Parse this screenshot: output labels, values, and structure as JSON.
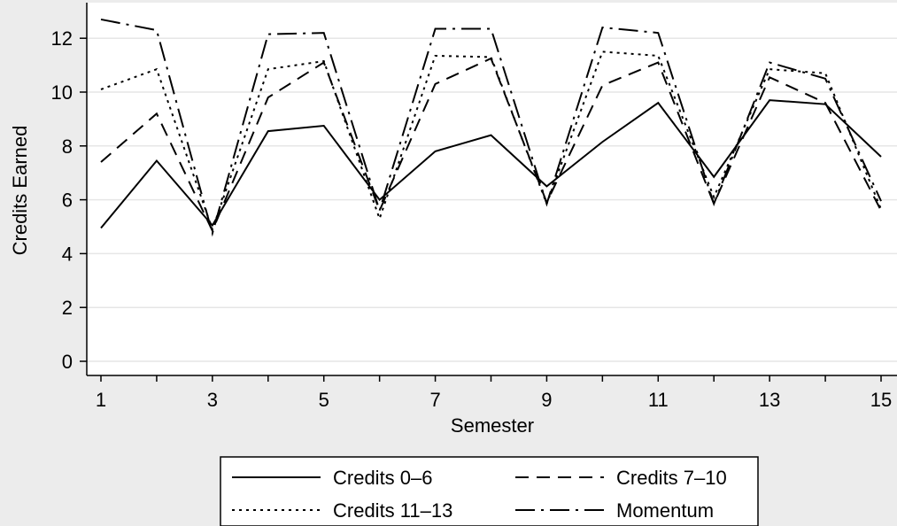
{
  "chart_data": {
    "type": "line",
    "xlabel": "Semester",
    "ylabel": "Credits Earned",
    "x": [
      1,
      2,
      3,
      4,
      5,
      6,
      7,
      8,
      9,
      10,
      11,
      12,
      13,
      14,
      15
    ],
    "x_ticks": [
      "1",
      "3",
      "5",
      "7",
      "9",
      "11",
      "13",
      "15"
    ],
    "y_ticks": [
      "0",
      "2",
      "4",
      "6",
      "8",
      "10",
      "12"
    ],
    "xlim": [
      1,
      15
    ],
    "ylim": [
      0,
      13
    ],
    "grid": true,
    "legend_position": "bottom",
    "series": [
      {
        "name": "Credits 0–6",
        "style": "solid",
        "values": [
          4.95,
          7.45,
          5.05,
          8.55,
          8.75,
          6.0,
          7.8,
          8.4,
          6.5,
          8.15,
          9.6,
          6.85,
          9.7,
          9.55,
          7.6
        ]
      },
      {
        "name": "Credits 7–10",
        "style": "dash",
        "values": [
          7.4,
          9.2,
          4.85,
          9.8,
          11.1,
          5.6,
          10.3,
          11.25,
          5.9,
          10.25,
          11.1,
          5.85,
          10.55,
          9.6,
          5.6
        ]
      },
      {
        "name": "Credits 11–13",
        "style": "dot",
        "values": [
          10.1,
          10.85,
          4.9,
          10.85,
          11.15,
          5.3,
          11.35,
          11.3,
          5.85,
          11.5,
          11.35,
          6.1,
          10.85,
          10.7,
          5.65
        ]
      },
      {
        "name": "Momentum",
        "style": "dashdot",
        "values": [
          12.7,
          12.3,
          4.75,
          12.15,
          12.2,
          5.6,
          12.35,
          12.35,
          5.85,
          12.4,
          12.2,
          5.85,
          11.1,
          10.5,
          5.95
        ]
      }
    ]
  }
}
